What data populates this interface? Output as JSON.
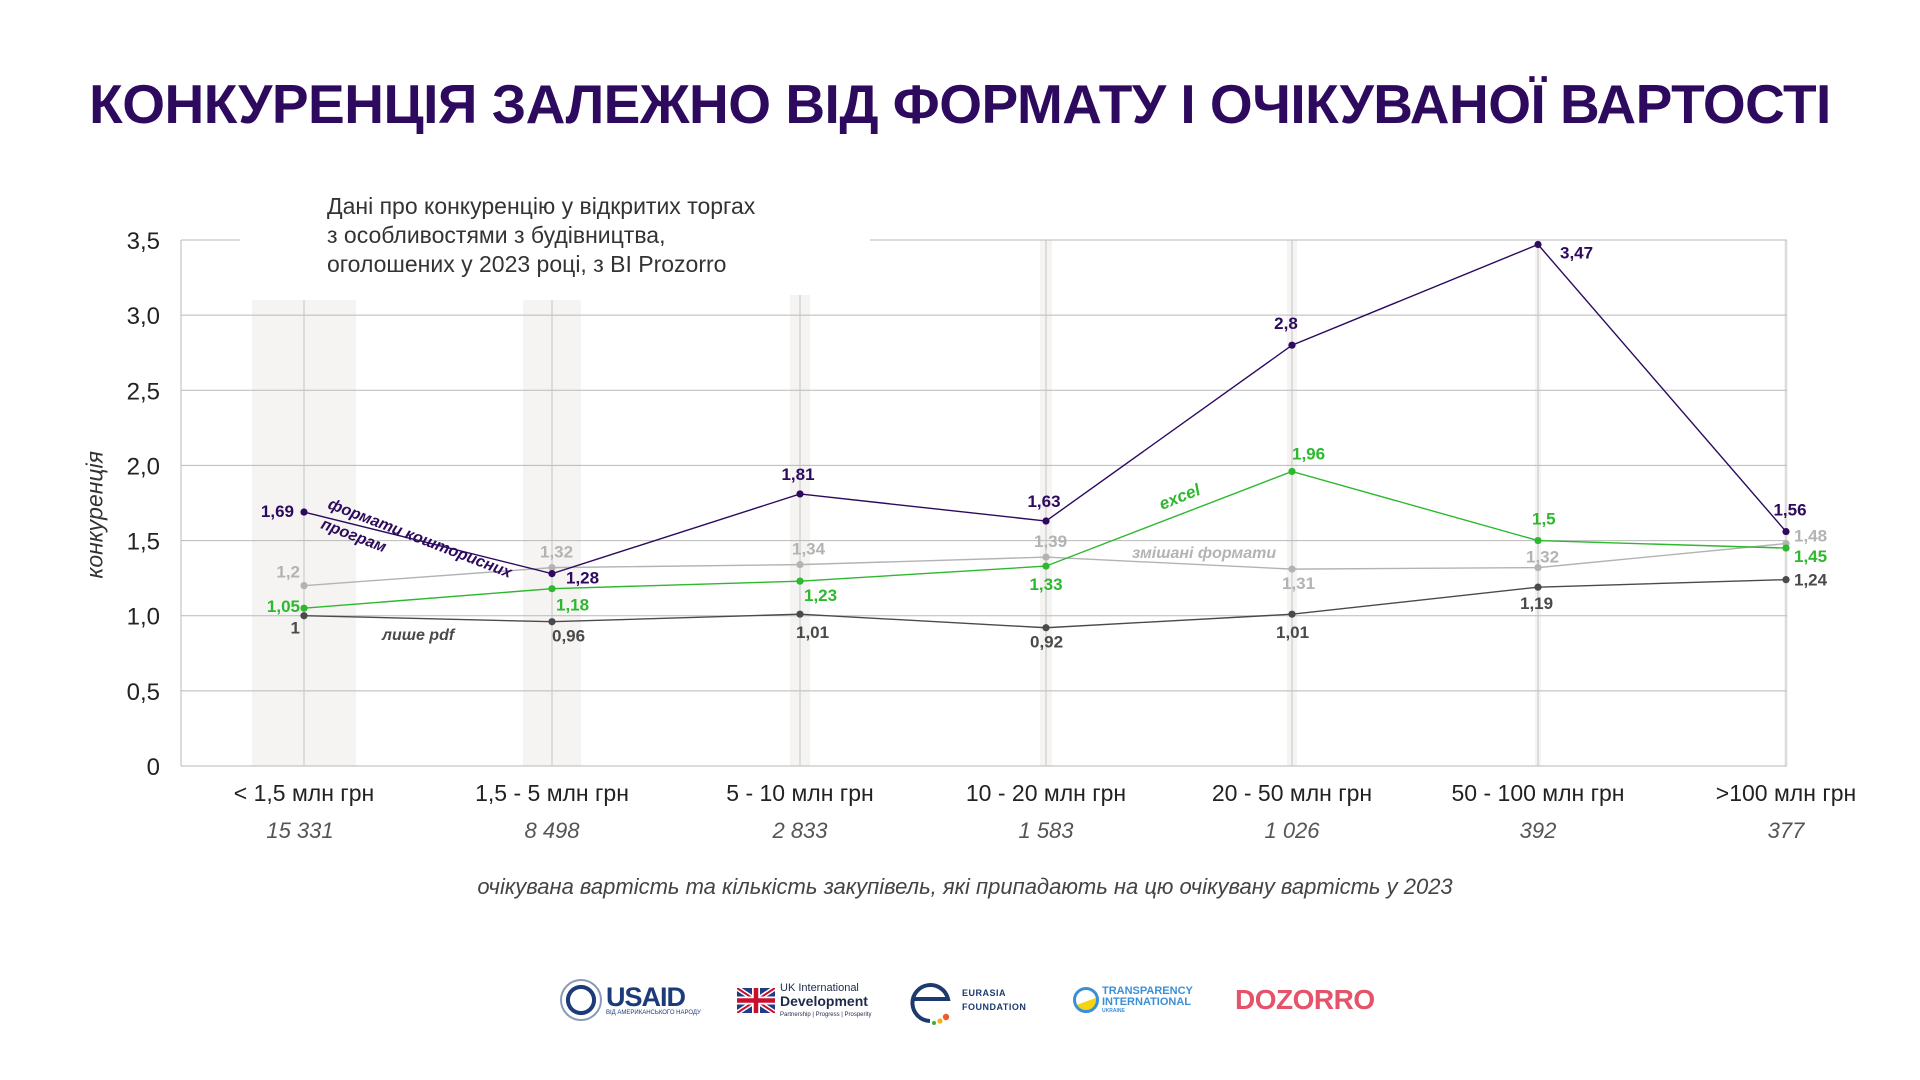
{
  "title": "КОНКУРЕНЦІЯ ЗАЛЕЖНО ВІД ФОРМАТУ І ОЧІКУВАНОЇ ВАРТОСТІ",
  "subtitle": [
    "Дані про конкуренцію у відкритих торгах",
    "з особливостями з будівництва,",
    "оголошених у 2023 році, з BI Prozorro"
  ],
  "chart_data": {
    "type": "line",
    "title": "КОНКУРЕНЦІЯ ЗАЛЕЖНО ВІД ФОРМАТУ І ОЧІКУВАНОЇ ВАРТОСТІ",
    "ylabel": "конкуренція",
    "xlabel": "очікувана вартість та кількість закупівель, які припадають на цю очікувану вартість у 2023",
    "ylim": [
      0,
      3.5
    ],
    "yticks": [
      "0",
      "0,5",
      "1,0",
      "1,5",
      "2,0",
      "2,5",
      "3,0",
      "3,5"
    ],
    "grid": true,
    "categories": [
      "< 1,5 млн грн",
      "1,5 - 5 млн грн",
      "5 - 10 млн грн",
      "10 - 20 млн грн",
      "20 - 50 млн грн",
      "50 - 100 млн грн",
      ">100 млн грн"
    ],
    "counts": [
      "15 331",
      "8 498",
      "2 833",
      "1 583",
      "1 026",
      "392",
      "377"
    ],
    "series": [
      {
        "name": "формати кошторисних програм",
        "color": "#2d0a5e",
        "values": [
          1.69,
          1.28,
          1.81,
          1.63,
          2.8,
          3.47,
          1.56
        ]
      },
      {
        "name": "excel",
        "color": "#2db82d",
        "values": [
          1.05,
          1.18,
          1.23,
          1.33,
          1.96,
          1.5,
          1.45
        ]
      },
      {
        "name": "змішані формати",
        "color": "#b3b3b3",
        "values": [
          1.2,
          1.32,
          1.34,
          1.39,
          1.31,
          1.32,
          1.48
        ]
      },
      {
        "name": "лише pdf",
        "color": "#4a4a4a",
        "values": [
          1,
          0.96,
          1.01,
          0.92,
          1.01,
          1.19,
          1.24
        ]
      }
    ]
  },
  "logos": {
    "usaid": "USAID",
    "usaid_sub": "ВІД АМЕРИКАНСЬКОГО НАРОДУ",
    "uk_line1": "UK International",
    "uk_line2": "Development",
    "uk_sub": "Partnership | Progress | Prosperity",
    "eurasia_line1": "EURASIA",
    "eurasia_line2": "FOUNDATION",
    "ti_line1": "TRANSPARENCY",
    "ti_line2": "INTERNATIONAL",
    "ti_line3": "UKRAINE",
    "dozorro": "DOZORRO"
  }
}
